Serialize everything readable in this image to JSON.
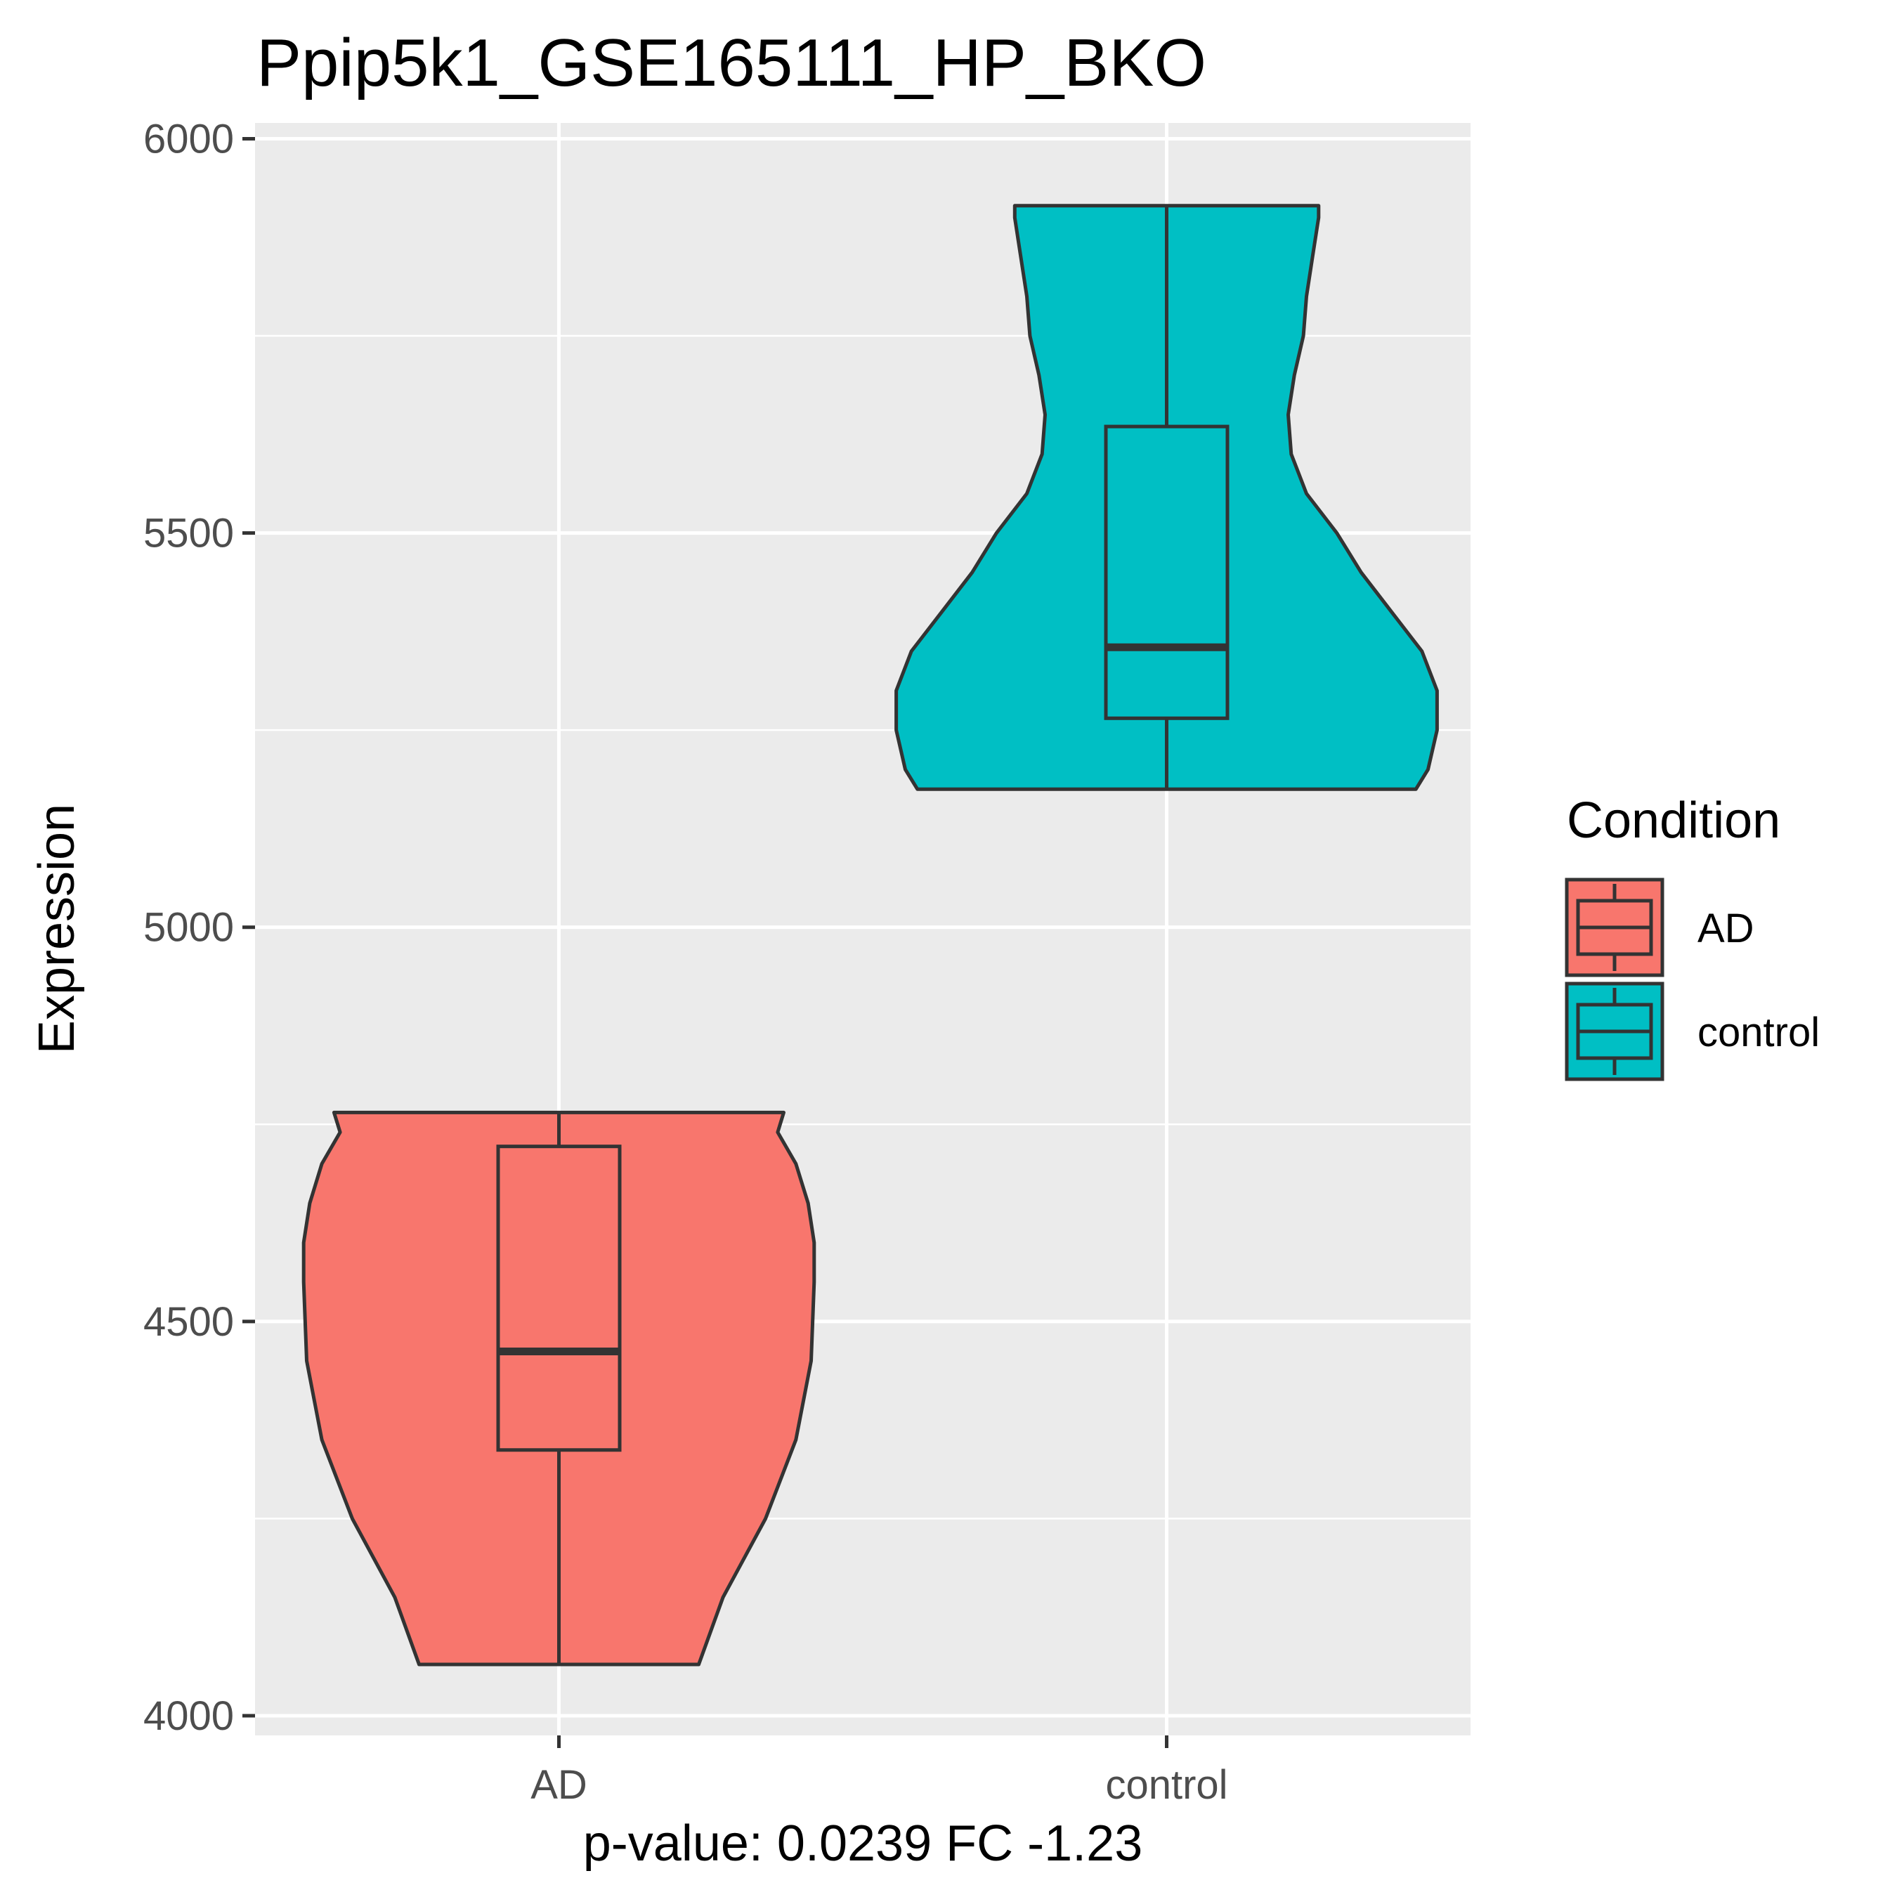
{
  "chart_data": {
    "type": "violin",
    "title": "Ppip5k1_GSE165111_HP_BKO",
    "xlabel": "p-value: 0.0239 FC -1.23",
    "ylabel": "Expression",
    "categories": [
      "AD",
      "control"
    ],
    "ylim": [
      3975,
      6020
    ],
    "yticks": [
      4000,
      4500,
      5000,
      5500,
      6000
    ],
    "grid": true,
    "legend": {
      "title": "Condition",
      "position": "right",
      "entries": [
        {
          "label": "AD",
          "color": "#F8766D"
        },
        {
          "label": "control",
          "color": "#00BFC4"
        }
      ]
    },
    "series": [
      {
        "name": "AD",
        "color": "#F8766D",
        "box": {
          "min": 4065,
          "q1": 4337,
          "median": 4462,
          "q3": 4722,
          "max": 4765
        },
        "violin_halfwidth": [
          [
            4065,
            0.23
          ],
          [
            4150,
            0.27
          ],
          [
            4250,
            0.34
          ],
          [
            4350,
            0.39
          ],
          [
            4450,
            0.415
          ],
          [
            4550,
            0.42
          ],
          [
            4600,
            0.42
          ],
          [
            4650,
            0.41
          ],
          [
            4700,
            0.39
          ],
          [
            4740,
            0.36
          ],
          [
            4765,
            0.37
          ]
        ]
      },
      {
        "name": "control",
        "color": "#00BFC4",
        "box": {
          "min": 5175,
          "q1": 5265,
          "median": 5355,
          "q3": 5635,
          "max": 5915
        },
        "violin_halfwidth": [
          [
            5175,
            0.41
          ],
          [
            5200,
            0.43
          ],
          [
            5250,
            0.445
          ],
          [
            5300,
            0.445
          ],
          [
            5350,
            0.42
          ],
          [
            5400,
            0.37
          ],
          [
            5450,
            0.32
          ],
          [
            5500,
            0.28
          ],
          [
            5550,
            0.23
          ],
          [
            5600,
            0.205
          ],
          [
            5650,
            0.2
          ],
          [
            5700,
            0.21
          ],
          [
            5750,
            0.225
          ],
          [
            5800,
            0.23
          ],
          [
            5850,
            0.24
          ],
          [
            5900,
            0.25
          ],
          [
            5915,
            0.25
          ]
        ]
      }
    ]
  }
}
